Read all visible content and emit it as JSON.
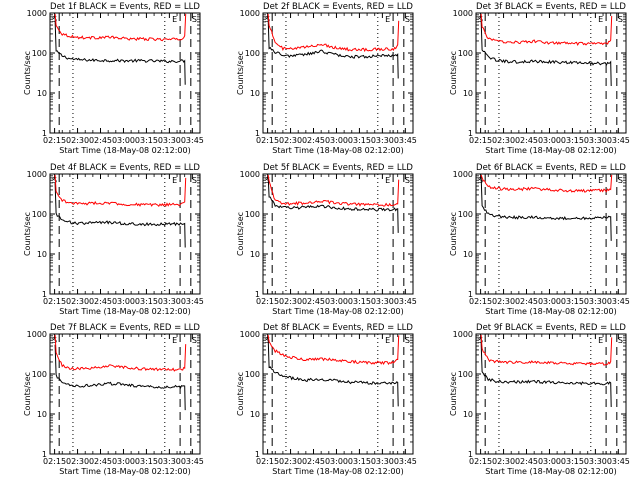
{
  "figure": {
    "background": "#ffffff",
    "colors": {
      "events": "#000000",
      "lld": "#ff0000",
      "axes": "#000000"
    }
  },
  "shared": {
    "xlabel": "Start Time (18-May-08 02:12:00)",
    "ylabel": "Counts/sec",
    "x_ticks": [
      "02:15",
      "02:30",
      "02:45",
      "03:00",
      "03:15",
      "03:30",
      "03:45"
    ],
    "y_ticks": [
      "1",
      "10",
      "100",
      "1000"
    ],
    "marker_s": "S",
    "marker_e": "E"
  },
  "chart_data": [
    {
      "type": "line",
      "title": "Det 1f BLACK = Events, RED = LLD",
      "yscale": "log",
      "ylim": [
        1,
        1000
      ],
      "xlim": [
        "02:12",
        "03:50"
      ],
      "grid": false,
      "x": [
        "02:16",
        "02:20",
        "02:25",
        "02:30",
        "02:40",
        "02:50",
        "03:00",
        "03:10",
        "03:20",
        "03:30",
        "03:38",
        "03:40"
      ],
      "series": [
        {
          "color": "#000000",
          "values": [
            110,
            85,
            72,
            68,
            66,
            65,
            64,
            64,
            63,
            62,
            63,
            64
          ]
        },
        {
          "color": "#ff0000",
          "values": [
            480,
            300,
            265,
            245,
            240,
            250,
            230,
            225,
            220,
            218,
            220,
            270
          ]
        }
      ],
      "vlines_dashed": [
        "02:18",
        "03:37",
        "03:44"
      ],
      "vlines_dotted": [
        "02:27",
        "03:27"
      ]
    },
    {
      "type": "line",
      "title": "Det 2f BLACK = Events, RED = LLD",
      "yscale": "log",
      "ylim": [
        1,
        1000
      ],
      "xlim": [
        "02:12",
        "03:50"
      ],
      "grid": false,
      "x": [
        "02:16",
        "02:20",
        "02:25",
        "02:30",
        "02:40",
        "02:50",
        "03:00",
        "03:10",
        "03:20",
        "03:30",
        "03:38",
        "03:40"
      ],
      "series": [
        {
          "color": "#000000",
          "values": [
            140,
            105,
            88,
            85,
            92,
            110,
            90,
            80,
            82,
            85,
            88,
            92
          ]
        },
        {
          "color": "#ff0000",
          "values": [
            520,
            175,
            130,
            125,
            140,
            165,
            135,
            120,
            122,
            125,
            128,
            160
          ]
        }
      ],
      "vlines_dashed": [
        "02:18",
        "03:37",
        "03:44"
      ],
      "vlines_dotted": [
        "02:27",
        "03:27"
      ]
    },
    {
      "type": "line",
      "title": "Det 3f BLACK = Events, RED = LLD",
      "yscale": "log",
      "ylim": [
        1,
        1000
      ],
      "xlim": [
        "02:12",
        "03:50"
      ],
      "grid": false,
      "x": [
        "02:16",
        "02:20",
        "02:25",
        "02:30",
        "02:40",
        "02:50",
        "03:00",
        "03:10",
        "03:20",
        "03:30",
        "03:38",
        "03:40"
      ],
      "series": [
        {
          "color": "#000000",
          "values": [
            120,
            80,
            66,
            62,
            60,
            62,
            60,
            58,
            57,
            55,
            54,
            60
          ]
        },
        {
          "color": "#ff0000",
          "values": [
            450,
            230,
            200,
            190,
            185,
            195,
            180,
            175,
            170,
            168,
            170,
            210
          ]
        }
      ],
      "vlines_dashed": [
        "02:18",
        "03:37",
        "03:44"
      ],
      "vlines_dotted": [
        "02:27",
        "03:27"
      ]
    },
    {
      "type": "line",
      "title": "Det 4f BLACK = Events, RED = LLD",
      "yscale": "log",
      "ylim": [
        1,
        1000
      ],
      "xlim": [
        "02:12",
        "03:50"
      ],
      "grid": false,
      "x": [
        "02:16",
        "02:20",
        "02:25",
        "02:30",
        "02:40",
        "02:50",
        "03:00",
        "03:10",
        "03:20",
        "03:30",
        "03:38",
        "03:40"
      ],
      "series": [
        {
          "color": "#000000",
          "values": [
            100,
            72,
            62,
            58,
            60,
            62,
            58,
            56,
            55,
            56,
            57,
            58
          ]
        },
        {
          "color": "#ff0000",
          "values": [
            350,
            220,
            190,
            180,
            185,
            190,
            175,
            170,
            168,
            170,
            175,
            200
          ]
        }
      ],
      "vlines_dashed": [
        "02:18",
        "03:37",
        "03:44"
      ],
      "vlines_dotted": [
        "02:27",
        "03:27"
      ]
    },
    {
      "type": "line",
      "title": "Det 5f BLACK = Events, RED = LLD",
      "yscale": "log",
      "ylim": [
        1,
        1000
      ],
      "xlim": [
        "02:12",
        "03:50"
      ],
      "grid": false,
      "x": [
        "02:16",
        "02:20",
        "02:25",
        "02:30",
        "02:40",
        "02:50",
        "03:00",
        "03:10",
        "03:20",
        "03:30",
        "03:38",
        "03:40"
      ],
      "series": [
        {
          "color": "#000000",
          "values": [
            280,
            165,
            145,
            140,
            148,
            160,
            140,
            132,
            130,
            128,
            130,
            135
          ]
        },
        {
          "color": "#ff0000",
          "values": [
            700,
            210,
            185,
            180,
            190,
            215,
            185,
            175,
            170,
            168,
            172,
            180
          ]
        }
      ],
      "vlines_dashed": [
        "02:18",
        "03:37",
        "03:44"
      ],
      "vlines_dotted": [
        "02:27",
        "03:27"
      ]
    },
    {
      "type": "line",
      "title": "Det 6f BLACK = Events, RED = LLD",
      "yscale": "log",
      "ylim": [
        1,
        1000
      ],
      "xlim": [
        "02:12",
        "03:50"
      ],
      "grid": false,
      "x": [
        "02:16",
        "02:20",
        "02:25",
        "02:30",
        "02:40",
        "02:50",
        "03:00",
        "03:10",
        "03:20",
        "03:30",
        "03:38",
        "03:40"
      ],
      "series": [
        {
          "color": "#000000",
          "values": [
            160,
            100,
            88,
            84,
            82,
            84,
            80,
            78,
            78,
            80,
            82,
            85
          ]
        },
        {
          "color": "#ff0000",
          "values": [
            800,
            480,
            440,
            420,
            415,
            430,
            400,
            385,
            380,
            385,
            395,
            410
          ]
        }
      ],
      "vlines_dashed": [
        "02:18",
        "03:37",
        "03:44"
      ],
      "vlines_dotted": [
        "02:27",
        "03:27"
      ]
    },
    {
      "type": "line",
      "title": "Det 7f BLACK = Events, RED = LLD",
      "yscale": "log",
      "ylim": [
        1,
        1000
      ],
      "xlim": [
        "02:12",
        "03:50"
      ],
      "grid": false,
      "x": [
        "02:16",
        "02:20",
        "02:25",
        "02:30",
        "02:40",
        "02:50",
        "03:00",
        "03:10",
        "03:20",
        "03:30",
        "03:38",
        "03:40"
      ],
      "series": [
        {
          "color": "#000000",
          "values": [
            90,
            60,
            52,
            50,
            52,
            58,
            55,
            50,
            48,
            47,
            48,
            50
          ]
        },
        {
          "color": "#ff0000",
          "values": [
            320,
            160,
            140,
            135,
            140,
            160,
            150,
            135,
            130,
            128,
            130,
            140
          ]
        }
      ],
      "vlines_dashed": [
        "02:18",
        "03:37",
        "03:44"
      ],
      "vlines_dotted": [
        "02:27",
        "03:27"
      ]
    },
    {
      "type": "line",
      "title": "Det 8f BLACK = Events, RED = LLD",
      "yscale": "log",
      "ylim": [
        1,
        1000
      ],
      "xlim": [
        "02:12",
        "03:50"
      ],
      "grid": false,
      "x": [
        "02:16",
        "02:20",
        "02:25",
        "02:30",
        "02:40",
        "02:50",
        "03:00",
        "03:10",
        "03:20",
        "03:30",
        "03:38",
        "03:40"
      ],
      "series": [
        {
          "color": "#000000",
          "values": [
            150,
            110,
            90,
            80,
            70,
            75,
            68,
            62,
            60,
            58,
            58,
            62
          ]
        },
        {
          "color": "#ff0000",
          "values": [
            650,
            380,
            300,
            260,
            230,
            240,
            220,
            200,
            195,
            190,
            190,
            230
          ]
        }
      ],
      "vlines_dashed": [
        "02:18",
        "03:37",
        "03:44"
      ],
      "vlines_dotted": [
        "02:27",
        "03:27"
      ]
    },
    {
      "type": "line",
      "title": "Det 9f BLACK = Events, RED = LLD",
      "yscale": "log",
      "ylim": [
        1,
        1000
      ],
      "xlim": [
        "02:12",
        "03:50"
      ],
      "grid": false,
      "x": [
        "02:16",
        "02:20",
        "02:25",
        "02:30",
        "02:40",
        "02:50",
        "03:00",
        "03:10",
        "03:20",
        "03:30",
        "03:38",
        "03:40"
      ],
      "series": [
        {
          "color": "#000000",
          "values": [
            110,
            75,
            66,
            64,
            63,
            64,
            62,
            60,
            59,
            58,
            58,
            60
          ]
        },
        {
          "color": "#ff0000",
          "values": [
            420,
            230,
            205,
            198,
            196,
            200,
            190,
            185,
            182,
            180,
            180,
            205
          ]
        }
      ],
      "vlines_dashed": [
        "02:18",
        "03:37",
        "03:44"
      ],
      "vlines_dotted": [
        "02:27",
        "03:27"
      ]
    }
  ]
}
